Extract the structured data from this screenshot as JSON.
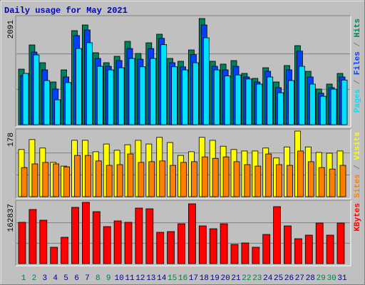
{
  "chart_data": {
    "type": "bar",
    "title": "Daily usage for May 2021",
    "categories": [
      "1",
      "2",
      "3",
      "4",
      "5",
      "6",
      "7",
      "8",
      "9",
      "10",
      "11",
      "12",
      "13",
      "14",
      "15",
      "16",
      "17",
      "18",
      "19",
      "20",
      "21",
      "22",
      "23",
      "24",
      "25",
      "26",
      "27",
      "28",
      "29",
      "30",
      "31"
    ],
    "category_colors": [
      "#008040",
      "#008040",
      "#000080",
      "#000080",
      "#000080",
      "#000080",
      "#000080",
      "#008040",
      "#008040",
      "#000080",
      "#000080",
      "#000080",
      "#000080",
      "#000080",
      "#008040",
      "#008040",
      "#000080",
      "#000080",
      "#000080",
      "#000080",
      "#000080",
      "#008040",
      "#008040",
      "#000080",
      "#000080",
      "#000080",
      "#000080",
      "#000080",
      "#008040",
      "#008040",
      "#000080"
    ],
    "legend_separator": " / ",
    "panels": [
      {
        "ylim": [
          0,
          2091
        ],
        "yticks": [
          2091
        ],
        "series": [
          {
            "name": "Hits",
            "color": "#00805c",
            "values": [
              1094,
              1571,
              1221,
              842,
              1080,
              1852,
              1964,
              1417,
              1221,
              1347,
              1642,
              1403,
              1613,
              1782,
              1305,
              1249,
              1473,
              2091,
              1249,
              1193,
              1263,
              1010,
              912,
              1122,
              842,
              1165,
              1557,
              1052,
              702,
              800,
              1010
            ]
          },
          {
            "name": "Files",
            "color": "#0040ff",
            "values": [
              968,
              1431,
              1080,
              702,
              940,
              1755,
              1866,
              1305,
              1150,
              1263,
              1500,
              1290,
              1500,
              1700,
              1220,
              1140,
              1380,
              1964,
              1150,
              1080,
              1150,
              940,
              842,
              1052,
              730,
              1080,
              1450,
              940,
              620,
              730,
              940
            ]
          },
          {
            "name": "Pages",
            "color": "#00e0ff",
            "values": [
              1010,
              1375,
              870,
              491,
              830,
              1501,
              1615,
              1150,
              1080,
              1122,
              1305,
              1140,
              1305,
              1576,
              1140,
              1080,
              1220,
              1712,
              1080,
              960,
              980,
              900,
              800,
              940,
              630,
              870,
              1150,
              800,
              560,
              700,
              880
            ]
          }
        ]
      },
      {
        "ylim": [
          0,
          178
        ],
        "yticks": [
          178
        ],
        "series": [
          {
            "name": "Visits",
            "color": "#ffff00",
            "values": [
              128,
              155,
              132,
              93,
              83,
              153,
              153,
              122,
              143,
              126,
              141,
              153,
              143,
              161,
              147,
              112,
              122,
              161,
              153,
              137,
              128,
              124,
              124,
              132,
              105,
              135,
              178,
              135,
              120,
              118,
              124
            ]
          },
          {
            "name": "Sites",
            "color": "#ff8000",
            "values": [
              79,
              89,
              93,
              89,
              81,
              112,
              112,
              97,
              85,
              87,
              116,
              93,
              95,
              97,
              85,
              93,
              95,
              108,
              104,
              108,
              95,
              87,
              83,
              116,
              87,
              85,
              124,
              95,
              79,
              75,
              85
            ]
          }
        ]
      },
      {
        "ylim": [
          0,
          162837
        ],
        "yticks": [
          162837
        ],
        "series": [
          {
            "name": "KBytes",
            "color": "#ff0000",
            "values": [
              109794,
              143868,
              115473,
              43539,
              70041,
              149547,
              162837,
              138189,
              98436,
              113580,
              109794,
              147654,
              145761,
              83292,
              85185,
              106008,
              159012,
              100329,
              92757,
              106008,
              51111,
              54897,
              43539,
              77613,
              151440,
              100329,
              66255,
              75720,
              107901,
              75720,
              107901
            ]
          }
        ]
      }
    ]
  }
}
